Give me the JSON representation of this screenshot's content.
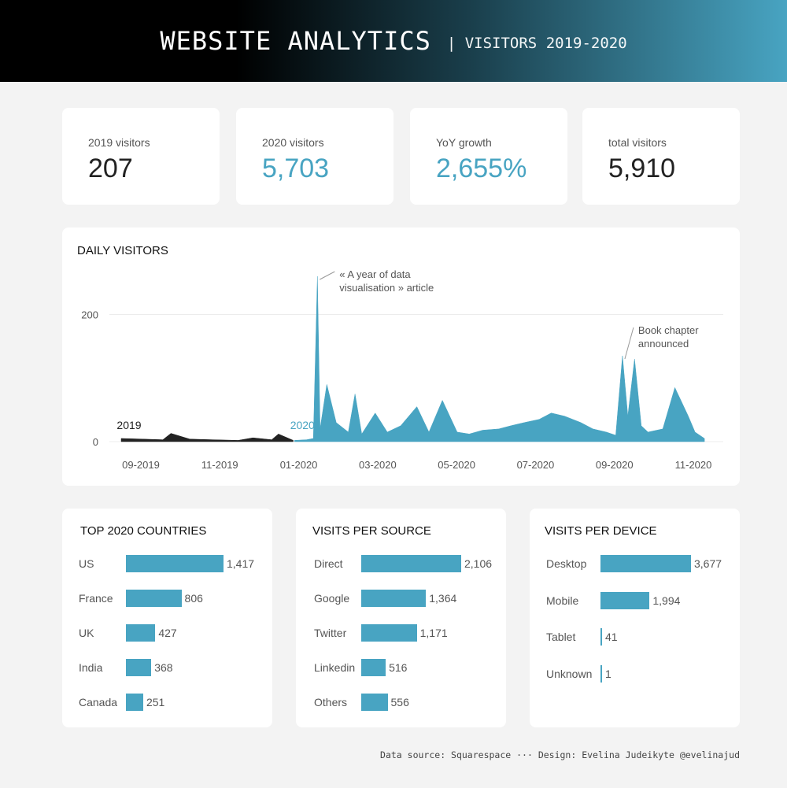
{
  "header": {
    "title": "WEBSITE ANALYTICS",
    "subtitle": "| VISITORS 2019-2020"
  },
  "kpis": [
    {
      "label": "2019 visitors",
      "value": "207",
      "accent": false
    },
    {
      "label": "2020 visitors",
      "value": "5,703",
      "accent": true
    },
    {
      "label": "YoY growth",
      "value": "2,655%",
      "accent": true
    },
    {
      "label": "total visitors",
      "value": "5,910",
      "accent": false
    }
  ],
  "colors": {
    "accent": "#48a4c2",
    "dark": "#222222"
  },
  "chart_data": [
    {
      "type": "area",
      "title": "DAILY VISITORS",
      "x_tick_labels": [
        "09-2019",
        "11-2019",
        "01-2020",
        "03-2020",
        "05-2020",
        "07-2020",
        "09-2020",
        "11-2020"
      ],
      "y_ticks": [
        0,
        200
      ],
      "ylim": [
        0,
        260
      ],
      "grid": true,
      "series": [
        {
          "name": "2019",
          "color": "#222222",
          "x": [
            "2019-08-25",
            "2019-09-10",
            "2019-09-25",
            "2019-10-01",
            "2019-10-15",
            "2019-11-01",
            "2019-11-20",
            "2019-12-01",
            "2019-12-15",
            "2019-12-20",
            "2019-12-31"
          ],
          "y": [
            5,
            4,
            3,
            13,
            4,
            3,
            2,
            6,
            3,
            12,
            2
          ]
        },
        {
          "name": "2020",
          "color": "#48a4c2",
          "x": [
            "2020-01-01",
            "2020-01-10",
            "2020-01-15",
            "2020-01-18",
            "2020-01-20",
            "2020-01-25",
            "2020-02-01",
            "2020-02-10",
            "2020-02-15",
            "2020-02-20",
            "2020-03-01",
            "2020-03-10",
            "2020-03-20",
            "2020-04-01",
            "2020-04-10",
            "2020-04-20",
            "2020-05-01",
            "2020-05-10",
            "2020-05-20",
            "2020-06-01",
            "2020-06-10",
            "2020-06-20",
            "2020-07-01",
            "2020-07-10",
            "2020-07-20",
            "2020-08-01",
            "2020-08-10",
            "2020-08-20",
            "2020-08-27",
            "2020-09-01",
            "2020-09-05",
            "2020-09-10",
            "2020-09-15",
            "2020-09-20",
            "2020-10-01",
            "2020-10-10",
            "2020-10-20",
            "2020-10-25",
            "2020-11-01"
          ],
          "y": [
            2,
            3,
            5,
            260,
            20,
            90,
            30,
            15,
            75,
            12,
            45,
            15,
            25,
            55,
            15,
            65,
            15,
            12,
            18,
            20,
            25,
            30,
            35,
            45,
            40,
            30,
            20,
            15,
            10,
            135,
            40,
            130,
            25,
            15,
            20,
            85,
            40,
            15,
            5
          ]
        }
      ],
      "annotations": [
        {
          "text_lines": [
            "« A year of data",
            "visualisation » article"
          ],
          "x": "2020-01-18",
          "y": 260
        },
        {
          "text_lines": [
            "Book chapter",
            "announced"
          ],
          "x": "2020-09-01",
          "y": 135
        }
      ]
    },
    {
      "type": "bar",
      "title": "TOP 2020 COUNTRIES",
      "categories": [
        "US",
        "France",
        "UK",
        "India",
        "Canada"
      ],
      "values": [
        1417,
        806,
        427,
        368,
        251
      ],
      "value_labels": [
        "1,417",
        "806",
        "427",
        "368",
        "251"
      ]
    },
    {
      "type": "bar",
      "title": "VISITS PER SOURCE",
      "categories": [
        "Direct",
        "Google",
        "Twitter",
        "Linkedin",
        "Others"
      ],
      "values": [
        2106,
        1364,
        1171,
        516,
        556
      ],
      "value_labels": [
        "2,106",
        "1,364",
        "1,171",
        "516",
        "556"
      ]
    },
    {
      "type": "bar",
      "title": "VISITS PER DEVICE",
      "categories": [
        "Desktop",
        "Mobile",
        "Tablet",
        "Unknown"
      ],
      "values": [
        3677,
        1994,
        41,
        1
      ],
      "value_labels": [
        "3,677",
        "1,994",
        "41",
        "1"
      ]
    }
  ],
  "footer": "Data source: Squarespace ··· Design: Evelina Judeikyte @evelinajud"
}
